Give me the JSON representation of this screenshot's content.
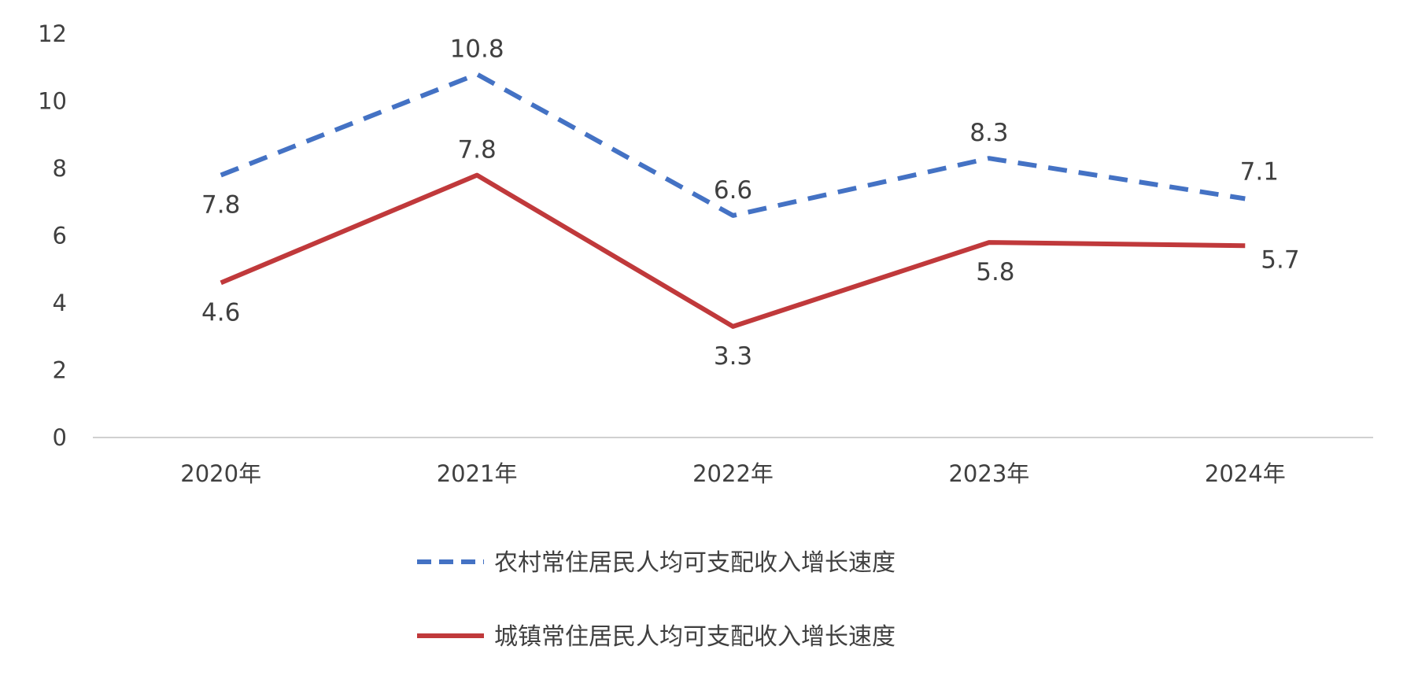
{
  "chart_data": {
    "type": "line",
    "title": "",
    "xlabel": "",
    "ylabel": "",
    "categories": [
      "2020年",
      "2021年",
      "2022年",
      "2023年",
      "2024年"
    ],
    "ylim": [
      0,
      12
    ],
    "yticks": [
      0,
      2,
      4,
      6,
      8,
      10,
      12
    ],
    "grid": false,
    "legend_position": "bottom",
    "series": [
      {
        "name": "农村常住居民人均可支配收入增长速度",
        "values": [
          7.8,
          10.8,
          6.6,
          8.3,
          7.1
        ],
        "color": "#4472C4",
        "line_style": "dashed",
        "data_labels": [
          "7.8",
          "10.8",
          "6.6",
          "8.3",
          "7.1"
        ]
      },
      {
        "name": "城镇常住居民人均可支配收入增长速度",
        "values": [
          4.6,
          7.8,
          3.3,
          5.8,
          5.7
        ],
        "color": "#C0393B",
        "line_style": "solid",
        "data_labels": [
          "4.6",
          "7.8",
          "3.3",
          "5.8",
          "5.7"
        ]
      }
    ]
  }
}
